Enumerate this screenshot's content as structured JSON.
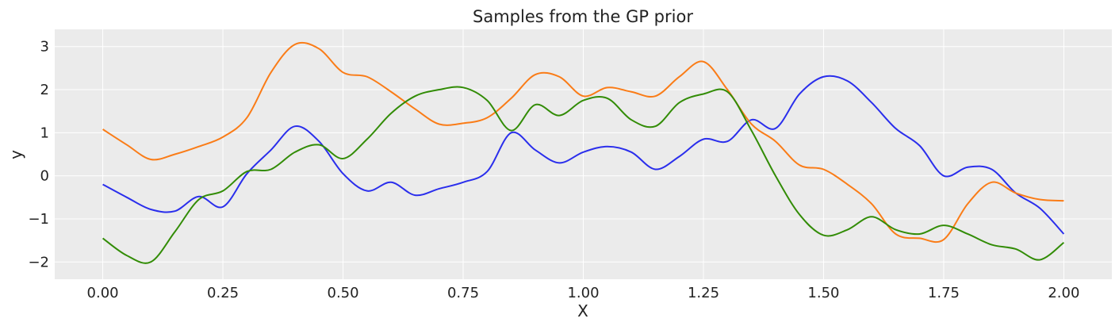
{
  "chart_data": {
    "type": "line",
    "title": "Samples from the GP prior",
    "xlabel": "X",
    "ylabel": "y",
    "xlim": [
      -0.1,
      2.1
    ],
    "ylim": [
      -2.4,
      3.4
    ],
    "xticks": [
      0.0,
      0.25,
      0.5,
      0.75,
      1.0,
      1.25,
      1.5,
      1.75,
      2.0
    ],
    "xtick_labels": [
      "0.00",
      "0.25",
      "0.50",
      "0.75",
      "1.00",
      "1.25",
      "1.50",
      "1.75",
      "2.00"
    ],
    "yticks": [
      -2,
      -1,
      0,
      1,
      2,
      3
    ],
    "ytick_labels": [
      "−2",
      "−1",
      "0",
      "1",
      "2",
      "3"
    ],
    "grid": true,
    "background": "#ebebeb",
    "series": [
      {
        "color": "#2a2eec",
        "x": [
          0.0,
          0.05,
          0.1,
          0.15,
          0.2,
          0.25,
          0.3,
          0.35,
          0.4,
          0.45,
          0.5,
          0.55,
          0.6,
          0.65,
          0.7,
          0.75,
          0.8,
          0.85,
          0.9,
          0.95,
          1.0,
          1.05,
          1.1,
          1.15,
          1.2,
          1.25,
          1.3,
          1.35,
          1.4,
          1.45,
          1.5,
          1.55,
          1.6,
          1.65,
          1.7,
          1.75,
          1.8,
          1.85,
          1.9,
          1.95,
          2.0
        ],
        "y": [
          -0.2,
          -0.5,
          -0.78,
          -0.82,
          -0.48,
          -0.72,
          0.05,
          0.6,
          1.15,
          0.8,
          0.05,
          -0.35,
          -0.15,
          -0.45,
          -0.3,
          -0.15,
          0.1,
          1.0,
          0.6,
          0.3,
          0.55,
          0.68,
          0.55,
          0.15,
          0.45,
          0.85,
          0.8,
          1.3,
          1.1,
          1.9,
          2.3,
          2.2,
          1.7,
          1.1,
          0.7,
          0.0,
          0.2,
          0.15,
          -0.4,
          -0.75,
          -1.35
        ]
      },
      {
        "color": "#fa7c17",
        "x": [
          0.0,
          0.05,
          0.1,
          0.15,
          0.2,
          0.25,
          0.3,
          0.35,
          0.4,
          0.45,
          0.5,
          0.55,
          0.6,
          0.65,
          0.7,
          0.75,
          0.8,
          0.85,
          0.9,
          0.95,
          1.0,
          1.05,
          1.1,
          1.15,
          1.2,
          1.25,
          1.3,
          1.35,
          1.4,
          1.45,
          1.5,
          1.55,
          1.6,
          1.65,
          1.7,
          1.75,
          1.8,
          1.85,
          1.9,
          1.95,
          2.0
        ],
        "y": [
          1.08,
          0.72,
          0.38,
          0.5,
          0.68,
          0.9,
          1.35,
          2.4,
          3.05,
          2.95,
          2.4,
          2.3,
          1.95,
          1.55,
          1.2,
          1.22,
          1.35,
          1.8,
          2.35,
          2.3,
          1.85,
          2.05,
          1.95,
          1.85,
          2.3,
          2.65,
          2.0,
          1.2,
          0.8,
          0.25,
          0.15,
          -0.2,
          -0.65,
          -1.35,
          -1.45,
          -1.48,
          -0.65,
          -0.15,
          -0.4,
          -0.55,
          -0.58
        ]
      },
      {
        "color": "#328c06",
        "x": [
          0.0,
          0.05,
          0.1,
          0.15,
          0.2,
          0.25,
          0.3,
          0.35,
          0.4,
          0.45,
          0.5,
          0.55,
          0.6,
          0.65,
          0.7,
          0.75,
          0.8,
          0.85,
          0.9,
          0.95,
          1.0,
          1.05,
          1.1,
          1.15,
          1.2,
          1.25,
          1.3,
          1.35,
          1.4,
          1.45,
          1.5,
          1.55,
          1.6,
          1.65,
          1.7,
          1.75,
          1.8,
          1.85,
          1.9,
          1.95,
          2.0
        ],
        "y": [
          -1.45,
          -1.85,
          -2.0,
          -1.3,
          -0.55,
          -0.35,
          0.1,
          0.15,
          0.55,
          0.72,
          0.4,
          0.85,
          1.45,
          1.85,
          2.0,
          2.05,
          1.75,
          1.05,
          1.65,
          1.4,
          1.75,
          1.8,
          1.3,
          1.15,
          1.7,
          1.9,
          1.95,
          1.05,
          0.0,
          -0.9,
          -1.38,
          -1.25,
          -0.95,
          -1.25,
          -1.35,
          -1.15,
          -1.35,
          -1.6,
          -1.7,
          -1.95,
          -1.55
        ]
      }
    ]
  }
}
